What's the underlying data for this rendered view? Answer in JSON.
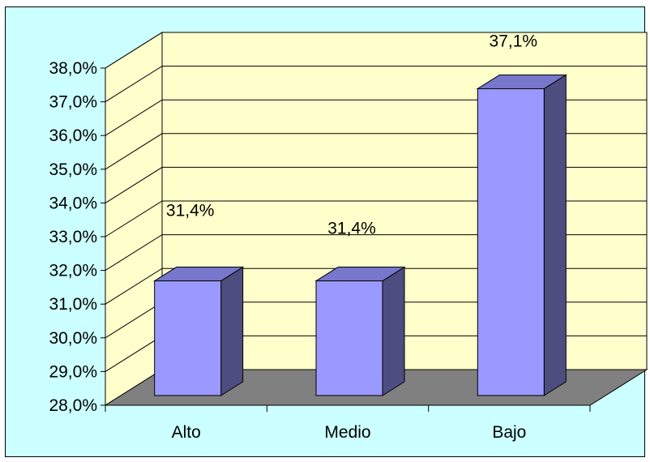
{
  "chart_data": {
    "type": "bar",
    "categories": [
      "Alto",
      "Medio",
      "Bajo"
    ],
    "values": [
      31.4,
      31.4,
      37.1
    ],
    "data_labels": [
      "31,4%",
      "31,4%",
      "37,1%"
    ],
    "ylim": [
      28.0,
      38.0
    ],
    "yticks": [
      "28,0%",
      "29,0%",
      "30,0%",
      "31,0%",
      "32,0%",
      "33,0%",
      "34,0%",
      "35,0%",
      "36,0%",
      "37,0%",
      "38,0%"
    ],
    "grid": true,
    "three_d": true,
    "legend": "none"
  },
  "colors": {
    "chart_background": "#ccffff",
    "wall": "#ffffcc",
    "floor": "#808080",
    "bar_front": "#9999ff",
    "bar_top": "#7777cc",
    "bar_side": "#4d4d80",
    "grid": "#000000"
  }
}
